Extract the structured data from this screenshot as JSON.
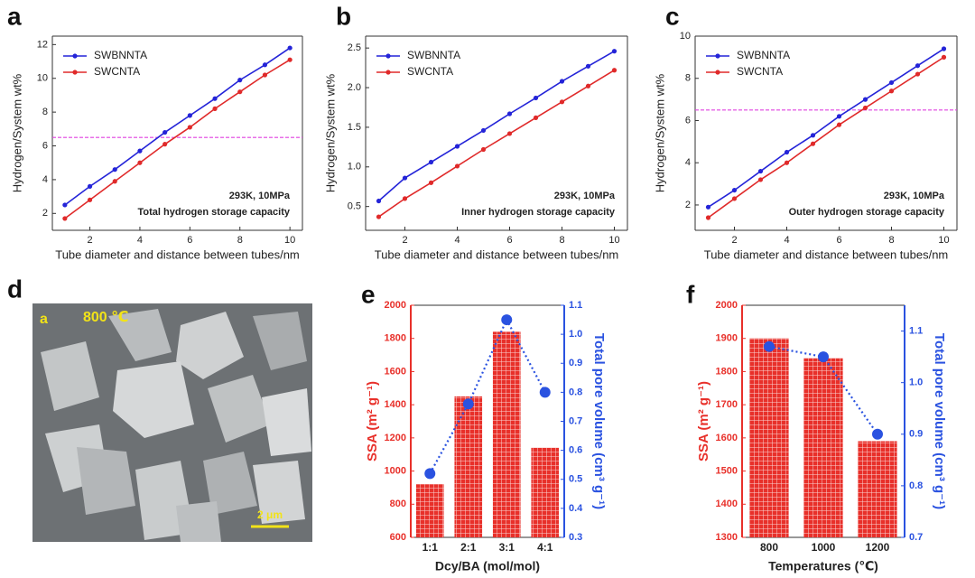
{
  "panel_labels": [
    "a",
    "b",
    "c",
    "d",
    "e",
    "f"
  ],
  "image": {
    "label": "a",
    "temperature": "800 ℃",
    "scale_bar": "2 μm"
  },
  "chart_data": [
    {
      "type": "line",
      "xlabel": "Tube diameter and distance between tubes/nm",
      "ylabel": "Hydrogen/System wt%",
      "x": [
        1,
        2,
        3,
        4,
        5,
        6,
        7,
        8,
        9,
        10
      ],
      "xlim": [
        0.5,
        10.5
      ],
      "xticks": [
        2,
        4,
        6,
        8,
        10
      ],
      "ylim": [
        1,
        12.5
      ],
      "yticks": [
        2,
        4,
        6,
        8,
        10,
        12
      ],
      "hline": 6.5,
      "hline_color": "#e040e0",
      "series": [
        {
          "name": "SWBNNTA",
          "color": "#2424d8",
          "values": [
            2.5,
            3.6,
            4.6,
            5.7,
            6.8,
            7.8,
            8.8,
            9.9,
            10.8,
            11.8
          ]
        },
        {
          "name": "SWCNTA",
          "color": "#e02a2a",
          "values": [
            1.7,
            2.8,
            3.9,
            5.0,
            6.1,
            7.1,
            8.2,
            9.2,
            10.2,
            11.1
          ]
        }
      ],
      "annotations": [
        "293K, 10MPa",
        "Total hydrogen storage capacity"
      ]
    },
    {
      "type": "line",
      "xlabel": "Tube diameter and distance between tubes/nm",
      "ylabel": "Hydrogen/System wt%",
      "x": [
        1,
        2,
        3,
        4,
        5,
        6,
        7,
        8,
        9,
        10
      ],
      "xlim": [
        0.5,
        10.5
      ],
      "xticks": [
        2,
        4,
        6,
        8,
        10
      ],
      "ylim": [
        0.2,
        2.65
      ],
      "yticks": [
        0.5,
        {
          "value": 1,
          "label": "1.0"
        },
        1.5,
        {
          "value": 2,
          "label": "2.0"
        },
        2.5
      ],
      "series": [
        {
          "name": "SWBNNTA",
          "color": "#2424d8",
          "values": [
            0.57,
            0.86,
            1.06,
            1.26,
            1.46,
            1.67,
            1.87,
            2.08,
            2.27,
            2.46
          ]
        },
        {
          "name": "SWCNTA",
          "color": "#e02a2a",
          "values": [
            0.37,
            0.6,
            0.8,
            1.01,
            1.22,
            1.42,
            1.62,
            1.82,
            2.02,
            2.22
          ]
        }
      ],
      "annotations": [
        "293K, 10MPa",
        "Inner hydrogen storage capacity"
      ]
    },
    {
      "type": "line",
      "xlabel": "Tube diameter and distance between tubes/nm",
      "ylabel": "Hydrogen/System wt%",
      "x": [
        1,
        2,
        3,
        4,
        5,
        6,
        7,
        8,
        9,
        10
      ],
      "xlim": [
        0.5,
        10.5
      ],
      "xticks": [
        2,
        4,
        6,
        8,
        10
      ],
      "ylim": [
        0.8,
        10
      ],
      "yticks": [
        2,
        4,
        6,
        8,
        10
      ],
      "hline": 6.5,
      "hline_color": "#e040e0",
      "series": [
        {
          "name": "SWBNNTA",
          "color": "#2424d8",
          "values": [
            1.9,
            2.7,
            3.6,
            4.5,
            5.3,
            6.2,
            7.0,
            7.8,
            8.6,
            9.4
          ]
        },
        {
          "name": "SWCNTA",
          "color": "#e02a2a",
          "values": [
            1.4,
            2.3,
            3.2,
            4.0,
            4.9,
            5.8,
            6.6,
            7.4,
            8.2,
            9.0
          ]
        }
      ],
      "annotations": [
        "293K, 10MPa",
        "Outer hydrogen storage capacity"
      ]
    },
    {
      "type": "bar",
      "xlabel": "Dcy/BA (mol/mol)",
      "ylabel": "SSA (m² g⁻¹)",
      "y2label": "Total pore volume (cm³ g⁻¹)",
      "categories": [
        "1:1",
        "2:1",
        "3:1",
        "4:1"
      ],
      "ylim": [
        600,
        2000
      ],
      "yticks": [
        600,
        800,
        1000,
        1200,
        1400,
        1600,
        1800,
        2000
      ],
      "y2lim": [
        0.3,
        1.1
      ],
      "y2ticks": [
        0.3,
        0.4,
        0.5,
        0.6,
        0.7,
        0.8,
        0.9,
        {
          "value": 1,
          "label": "1.0"
        },
        1.1
      ],
      "series": [
        {
          "color": "#e8302a",
          "values": [
            920,
            1450,
            1840,
            1140
          ]
        },
        {
          "color": "#2a52e0",
          "axis": "y2",
          "values": [
            0.52,
            0.76,
            1.05,
            0.8
          ]
        }
      ]
    },
    {
      "type": "bar",
      "xlabel": "Temperatures (℃)",
      "ylabel": "SSA (m² g⁻¹)",
      "y2label": "Total pore volume (cm³ g⁻¹)",
      "categories": [
        "800",
        "1000",
        "1200"
      ],
      "ylim": [
        1300,
        2000
      ],
      "yticks": [
        1300,
        1400,
        1500,
        1600,
        1700,
        1800,
        1900,
        2000
      ],
      "y2lim": [
        0.7,
        1.15
      ],
      "y2ticks": [
        0.7,
        0.8,
        0.9,
        {
          "value": 1,
          "label": "1.0"
        },
        1.1
      ],
      "series": [
        {
          "color": "#e8302a",
          "values": [
            1900,
            1840,
            1590
          ]
        },
        {
          "color": "#2a52e0",
          "axis": "y2",
          "values": [
            1.07,
            1.05,
            0.9
          ]
        }
      ]
    }
  ]
}
